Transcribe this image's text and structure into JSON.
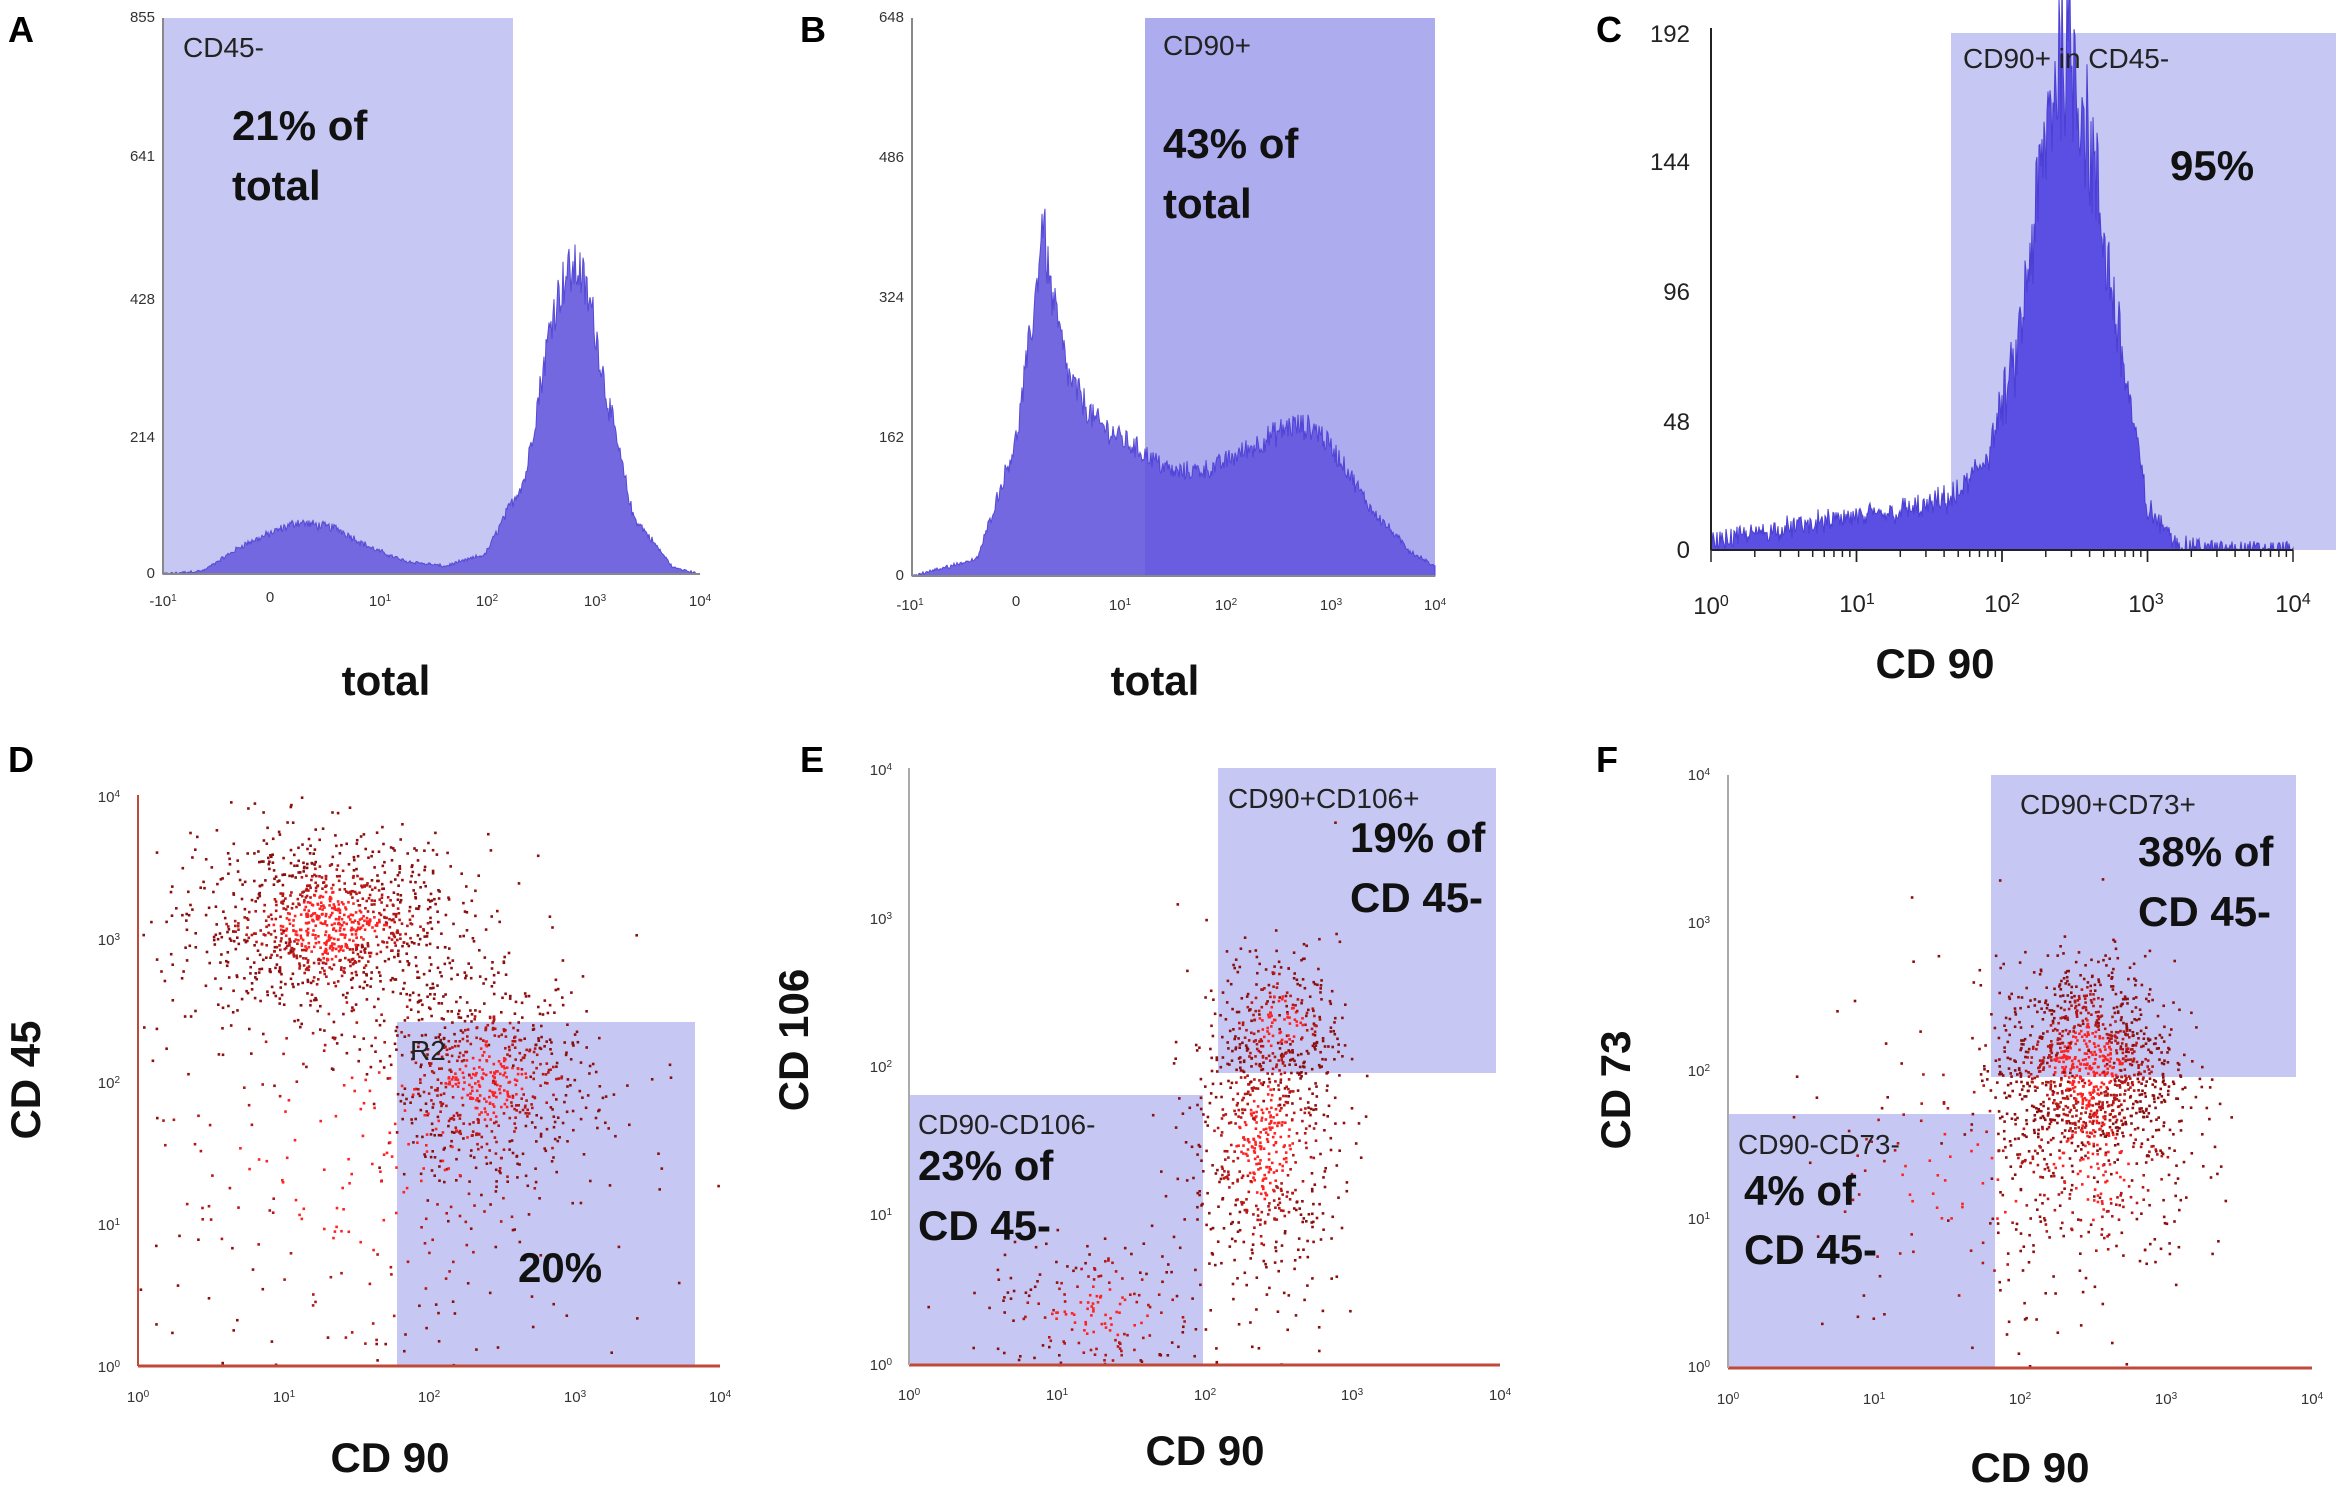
{
  "chart_data": [
    {
      "panel": "A",
      "type": "area",
      "xlabel": "total",
      "ylabel": "",
      "x_tick_labels": [
        "-10^1",
        "0",
        "10^1",
        "10^2",
        "10^3",
        "10^4"
      ],
      "y_ticks": [
        0,
        214,
        428,
        641,
        855
      ],
      "ylim": [
        0,
        855
      ],
      "gate": {
        "name": "CD45-",
        "stat_line1": "21% of",
        "stat_line2": "total"
      },
      "series": [
        {
          "name": "events",
          "x": [
            0,
            0.3,
            0.6,
            1.0,
            1.3,
            1.55,
            1.8,
            2.1,
            2.4,
            2.7,
            2.9,
            3.0,
            3.1,
            3.2,
            3.3,
            3.5,
            3.8,
            4.0
          ],
          "values": [
            0,
            5,
            45,
            80,
            70,
            40,
            20,
            12,
            30,
            150,
            400,
            460,
            470,
            400,
            280,
            90,
            10,
            0
          ]
        }
      ]
    },
    {
      "panel": "B",
      "type": "area",
      "xlabel": "total",
      "ylabel": "",
      "x_tick_labels": [
        "-10^1",
        "0",
        "10^1",
        "10^2",
        "10^3",
        "10^4"
      ],
      "y_ticks": [
        0,
        162,
        324,
        486,
        648
      ],
      "ylim": [
        0,
        648
      ],
      "gate": {
        "name": "CD90+",
        "stat_line1": "43% of",
        "stat_line2": "total"
      },
      "series": [
        {
          "name": "events",
          "x": [
            0,
            0.5,
            0.8,
            0.95,
            1.0,
            1.05,
            1.2,
            1.4,
            1.7,
            2.0,
            2.3,
            2.6,
            2.9,
            3.1,
            3.3,
            3.5,
            3.8,
            4.0
          ],
          "values": [
            0,
            20,
            160,
            330,
            420,
            340,
            230,
            180,
            150,
            120,
            125,
            150,
            175,
            170,
            130,
            80,
            30,
            10
          ]
        }
      ]
    },
    {
      "panel": "C",
      "type": "area",
      "xlabel": "CD 90",
      "ylabel": "",
      "x_tick_labels": [
        "10^0",
        "10^1",
        "10^2",
        "10^3",
        "10^4"
      ],
      "y_ticks": [
        0,
        48,
        96,
        144,
        192
      ],
      "ylim": [
        0,
        192
      ],
      "gate": {
        "name": "CD90+ in CD45-",
        "stat_line1": "95%",
        "stat_line2": ""
      },
      "series": [
        {
          "name": "events",
          "x": [
            0,
            0.5,
            1.0,
            1.5,
            1.7,
            1.9,
            2.1,
            2.3,
            2.4,
            2.5,
            2.6,
            2.8,
            3.0,
            3.2,
            3.5,
            4.0
          ],
          "values": [
            3,
            8,
            12,
            16,
            20,
            35,
            70,
            150,
            185,
            180,
            150,
            80,
            15,
            2,
            0,
            0
          ]
        }
      ]
    },
    {
      "panel": "D",
      "type": "scatter",
      "xlabel": "CD 90",
      "ylabel": "CD 45",
      "x_tick_labels": [
        "10^0",
        "10^1",
        "10^2",
        "10^3",
        "10^4"
      ],
      "y_tick_labels": [
        "10^0",
        "10^1",
        "10^2",
        "10^3",
        "10^4"
      ],
      "xlim": [
        0,
        4
      ],
      "ylim": [
        0,
        4
      ],
      "gate": {
        "name": "R2",
        "stat_line1": "20%",
        "stat_line2": ""
      },
      "clusters": [
        {
          "cx": 1.3,
          "cy": 3.1,
          "sx": 0.45,
          "sy": 0.3,
          "n": 1100
        },
        {
          "cx": 2.4,
          "cy": 2.0,
          "sx": 0.35,
          "sy": 0.35,
          "n": 650
        },
        {
          "cx": 1.5,
          "cy": 1.5,
          "sx": 1.0,
          "sy": 0.9,
          "n": 350
        }
      ]
    },
    {
      "panel": "E",
      "type": "scatter",
      "xlabel": "CD 90",
      "ylabel": "CD 106",
      "x_tick_labels": [
        "10^0",
        "10^1",
        "10^2",
        "10^3",
        "10^4"
      ],
      "y_tick_labels": [
        "10^0",
        "10^1",
        "10^2",
        "10^3",
        "10^4"
      ],
      "xlim": [
        0,
        4
      ],
      "ylim": [
        0,
        4
      ],
      "gates": [
        {
          "name": "CD90+CD106+",
          "stat_line1": "19% of",
          "stat_line2": "CD 45-"
        },
        {
          "name": "CD90-CD106-",
          "stat_line1": "23% of",
          "stat_line2": "CD 45-"
        }
      ],
      "clusters": [
        {
          "cx": 2.4,
          "cy": 1.5,
          "sx": 0.25,
          "sy": 0.5,
          "n": 650
        },
        {
          "cx": 2.5,
          "cy": 2.3,
          "sx": 0.2,
          "sy": 0.25,
          "n": 250
        },
        {
          "cx": 1.3,
          "cy": 0.35,
          "sx": 0.4,
          "sy": 0.25,
          "n": 200
        }
      ]
    },
    {
      "panel": "F",
      "type": "scatter",
      "xlabel": "CD 90",
      "ylabel": "CD 73",
      "x_tick_labels": [
        "10^0",
        "10^1",
        "10^2",
        "10^3",
        "10^4"
      ],
      "y_tick_labels": [
        "10^0",
        "10^1",
        "10^2",
        "10^3",
        "10^4"
      ],
      "xlim": [
        0,
        4
      ],
      "ylim": [
        0,
        4
      ],
      "gates": [
        {
          "name": "CD90+CD73+",
          "stat_line1": "38% of",
          "stat_line2": "CD 45-"
        },
        {
          "name": "CD90-CD73-",
          "stat_line1": "4% of",
          "stat_line2": "CD 45-"
        }
      ],
      "clusters": [
        {
          "cx": 2.45,
          "cy": 2.05,
          "sx": 0.3,
          "sy": 0.35,
          "n": 1100
        },
        {
          "cx": 2.5,
          "cy": 1.4,
          "sx": 0.35,
          "sy": 0.45,
          "n": 350
        },
        {
          "cx": 1.5,
          "cy": 1.2,
          "sx": 0.6,
          "sy": 0.6,
          "n": 120
        }
      ]
    }
  ],
  "colors": {
    "gate_fill": "#c6c8f3",
    "histogram_fill": "#7468e0",
    "histogram_in_gate": "#5a4ee3",
    "dot": "#8b0f0f",
    "dense_dot": "#ff2222",
    "axis": "#c04a3a"
  }
}
